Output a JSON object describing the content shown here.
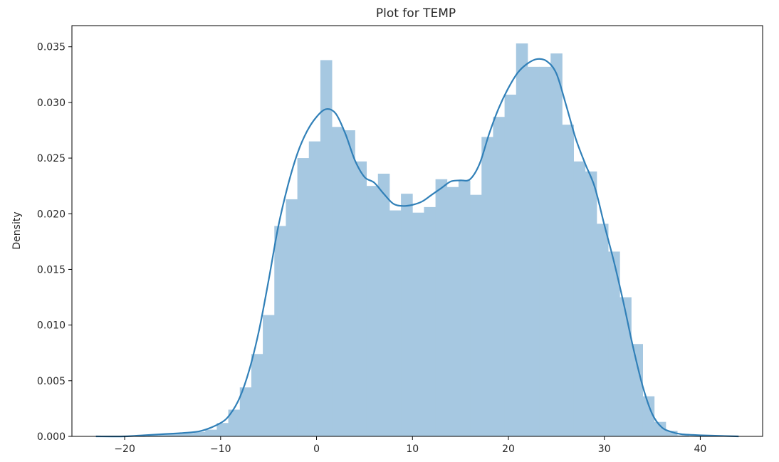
{
  "chart_data": {
    "type": "histogram+kde",
    "title": "Plot for TEMP",
    "xlabel": "",
    "ylabel": "Density",
    "xlim": [
      -25.5,
      46.5
    ],
    "ylim": [
      0,
      0.0369
    ],
    "x_ticks": [
      -20,
      -10,
      0,
      10,
      20,
      30,
      40
    ],
    "x_tick_labels": [
      "−20",
      "−10",
      "0",
      "10",
      "20",
      "30",
      "40"
    ],
    "y_ticks": [
      0.0,
      0.005,
      0.01,
      0.015,
      0.02,
      0.025,
      0.03,
      0.035
    ],
    "y_tick_labels": [
      "0.000",
      "0.005",
      "0.010",
      "0.015",
      "0.020",
      "0.025",
      "0.030",
      "0.035"
    ],
    "grid": false,
    "colors": {
      "bars": "#a6c8e1",
      "kde": "#3180b8",
      "axes": "#000000"
    },
    "histogram": {
      "bins": [
        [
          -20,
          0.0
        ],
        [
          -18.8,
          0.0
        ],
        [
          -17.6,
          0.0001
        ],
        [
          -16.4,
          0.0002
        ],
        [
          -15.2,
          0.0003
        ],
        [
          -14.0,
          0.0003
        ],
        [
          -12.8,
          0.0004
        ],
        [
          -11.6,
          0.0006
        ],
        [
          -10.4,
          0.0012
        ],
        [
          -9.2,
          0.0024
        ],
        [
          -8.0,
          0.0044
        ],
        [
          -6.8,
          0.0074
        ],
        [
          -5.6,
          0.0109
        ],
        [
          -4.4,
          0.0189
        ],
        [
          -3.2,
          0.0213
        ],
        [
          -2.0,
          0.025
        ],
        [
          -0.8,
          0.0265
        ],
        [
          0.4,
          0.0338
        ],
        [
          1.6,
          0.0278
        ],
        [
          2.8,
          0.0275
        ],
        [
          4.0,
          0.0247
        ],
        [
          5.2,
          0.0225
        ],
        [
          6.4,
          0.0236
        ],
        [
          7.6,
          0.0203
        ],
        [
          8.8,
          0.0218
        ],
        [
          10.0,
          0.0201
        ],
        [
          11.2,
          0.0206
        ],
        [
          12.4,
          0.0231
        ],
        [
          13.6,
          0.0224
        ],
        [
          14.8,
          0.023
        ],
        [
          16.0,
          0.0217
        ],
        [
          17.2,
          0.0269
        ],
        [
          18.4,
          0.0287
        ],
        [
          19.6,
          0.0307
        ],
        [
          20.8,
          0.0353
        ],
        [
          22.0,
          0.0332
        ],
        [
          23.2,
          0.0332
        ],
        [
          24.4,
          0.0344
        ],
        [
          25.6,
          0.028
        ],
        [
          26.8,
          0.0247
        ],
        [
          28.0,
          0.0238
        ],
        [
          29.2,
          0.0191
        ],
        [
          30.4,
          0.0166
        ],
        [
          31.6,
          0.0125
        ],
        [
          32.8,
          0.0083
        ],
        [
          34.0,
          0.0036
        ],
        [
          35.2,
          0.0013
        ],
        [
          36.4,
          0.0005
        ],
        [
          37.6,
          0.0001
        ]
      ],
      "bin_width": 1.2
    },
    "kde": {
      "points": [
        [
          -23,
          0.0
        ],
        [
          -20,
          0.0
        ],
        [
          -18,
          0.0001
        ],
        [
          -16,
          0.0002
        ],
        [
          -14,
          0.0003
        ],
        [
          -12,
          0.0005
        ],
        [
          -10,
          0.0012
        ],
        [
          -9,
          0.002
        ],
        [
          -8,
          0.0035
        ],
        [
          -7,
          0.006
        ],
        [
          -6,
          0.0095
        ],
        [
          -5,
          0.014
        ],
        [
          -4,
          0.0188
        ],
        [
          -3,
          0.0225
        ],
        [
          -2,
          0.0254
        ],
        [
          -1,
          0.0274
        ],
        [
          0,
          0.0287
        ],
        [
          1,
          0.0294
        ],
        [
          2,
          0.029
        ],
        [
          3,
          0.0272
        ],
        [
          4,
          0.0248
        ],
        [
          5,
          0.0233
        ],
        [
          6,
          0.0228
        ],
        [
          7,
          0.0218
        ],
        [
          8,
          0.0209
        ],
        [
          9,
          0.0207
        ],
        [
          10,
          0.0208
        ],
        [
          11,
          0.0211
        ],
        [
          12,
          0.0217
        ],
        [
          13,
          0.0223
        ],
        [
          14,
          0.0229
        ],
        [
          15,
          0.023
        ],
        [
          16,
          0.0231
        ],
        [
          17,
          0.0245
        ],
        [
          18,
          0.0272
        ],
        [
          19,
          0.0295
        ],
        [
          20,
          0.0313
        ],
        [
          21,
          0.0327
        ],
        [
          22,
          0.0335
        ],
        [
          23,
          0.0339
        ],
        [
          24,
          0.0337
        ],
        [
          25,
          0.0326
        ],
        [
          26,
          0.0298
        ],
        [
          27,
          0.0268
        ],
        [
          28,
          0.0245
        ],
        [
          29,
          0.0224
        ],
        [
          30,
          0.019
        ],
        [
          31,
          0.0157
        ],
        [
          32,
          0.012
        ],
        [
          33,
          0.008
        ],
        [
          34,
          0.0045
        ],
        [
          35,
          0.002
        ],
        [
          36,
          0.0008
        ],
        [
          37,
          0.0004
        ],
        [
          38,
          0.0002
        ],
        [
          40,
          0.0001
        ],
        [
          44,
          0.0
        ]
      ]
    }
  }
}
